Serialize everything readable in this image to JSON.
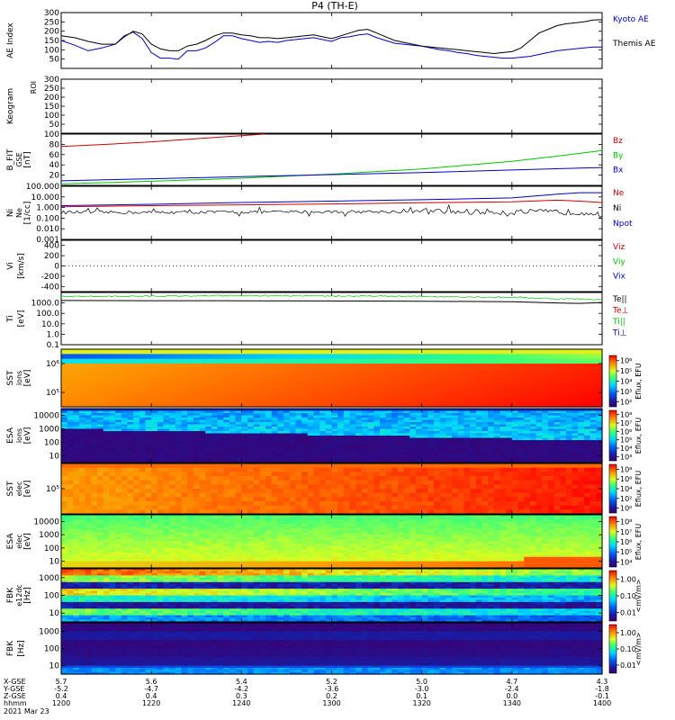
{
  "chart_data": {
    "title": "P4 (TH-E)",
    "date": "2021 Mar 23",
    "x_axis": {
      "row_labels": [
        "X-GSE",
        "Y-GSE",
        "Z-GSE",
        "hhmm"
      ],
      "ticks": [
        {
          "x": "5.7",
          "y": "-5.2",
          "z": "0.4",
          "hhmm": "1200"
        },
        {
          "x": "5.6",
          "y": "-4.7",
          "z": "0.4",
          "hhmm": "1220"
        },
        {
          "x": "5.4",
          "y": "-4.2",
          "z": "0.3",
          "hhmm": "1240"
        },
        {
          "x": "5.2",
          "y": "-3.6",
          "z": "0.2",
          "hhmm": "1300"
        },
        {
          "x": "5.0",
          "y": "-3.0",
          "z": "0.1",
          "hhmm": "1320"
        },
        {
          "x": "4.7",
          "y": "-2.4",
          "z": "0.0",
          "hhmm": "1340"
        },
        {
          "x": "4.3",
          "y": "-1.8",
          "z": "-0.1",
          "hhmm": "1400"
        }
      ]
    },
    "panels": [
      {
        "id": "ae",
        "type": "line",
        "ylabel": "AE Index",
        "ylim": [
          0,
          300
        ],
        "yticks": [
          "50",
          "100",
          "150",
          "200",
          "250",
          "300"
        ],
        "legend": [
          {
            "text": "Kyoto AE",
            "color": "#0000c8"
          },
          {
            "text": "Themis AE",
            "color": "#000000"
          }
        ],
        "series": [
          {
            "name": "Kyoto AE",
            "color": "#0000c8",
            "t": [
              0,
              3,
              6,
              9,
              12,
              14,
              16,
              18,
              20,
              22,
              24,
              26,
              28,
              30,
              32,
              34,
              36,
              38,
              40,
              42,
              44,
              46,
              48,
              50,
              52,
              54,
              56,
              58,
              60,
              62,
              64,
              66,
              68,
              70,
              72,
              74,
              76,
              78,
              80,
              82,
              84,
              86,
              88,
              90,
              92,
              94,
              96,
              98,
              100,
              102,
              104,
              106,
              108,
              110,
              112,
              114,
              116,
              118,
              120
            ],
            "v": [
              150,
              125,
              95,
              110,
              130,
              175,
              195,
              160,
              85,
              55,
              55,
              50,
              95,
              95,
              110,
              140,
              175,
              175,
              160,
              150,
              140,
              145,
              140,
              150,
              155,
              160,
              165,
              155,
              145,
              165,
              170,
              180,
              185,
              165,
              150,
              135,
              130,
              125,
              120,
              110,
              100,
              95,
              85,
              80,
              70,
              65,
              60,
              55,
              55,
              60,
              65,
              75,
              85,
              95,
              100,
              105,
              110,
              115,
              115
            ]
          },
          {
            "name": "Themis AE",
            "color": "#000000",
            "t": [
              0,
              3,
              6,
              9,
              12,
              14,
              16,
              18,
              20,
              22,
              24,
              26,
              28,
              30,
              32,
              34,
              36,
              38,
              40,
              42,
              44,
              46,
              48,
              50,
              52,
              54,
              56,
              58,
              60,
              62,
              64,
              66,
              68,
              70,
              72,
              74,
              76,
              78,
              80,
              82,
              84,
              86,
              88,
              90,
              92,
              94,
              96,
              98,
              100,
              102,
              104,
              106,
              108,
              110,
              112,
              114,
              116,
              118,
              120
            ],
            "v": [
              175,
              165,
              145,
              130,
              130,
              170,
              200,
              185,
              130,
              105,
              95,
              95,
              120,
              130,
              150,
              175,
              190,
              190,
              180,
              175,
              165,
              165,
              160,
              165,
              170,
              175,
              180,
              170,
              160,
              175,
              190,
              205,
              210,
              190,
              170,
              150,
              140,
              130,
              120,
              115,
              110,
              105,
              100,
              95,
              90,
              85,
              80,
              85,
              90,
              110,
              150,
              190,
              210,
              230,
              240,
              245,
              250,
              260,
              262
            ]
          }
        ]
      },
      {
        "id": "kp",
        "type": "empty",
        "ylabel": "Keogram",
        "ylim": [
          0,
          300
        ],
        "yticks": [
          "50",
          "100",
          "150",
          "200",
          "250",
          "300"
        ],
        "top_label": "ROI"
      },
      {
        "id": "bfit",
        "type": "line",
        "ylabel": "B_FIT",
        "units": "[nT]",
        "sub": "GSE",
        "ylim": [
          0,
          100
        ],
        "yticks": [
          "20",
          "40",
          "60",
          "80",
          "100"
        ],
        "legend": [
          {
            "text": "Bz",
            "color": "#d00000"
          },
          {
            "text": "By",
            "color": "#00c800"
          },
          {
            "text": "Bx",
            "color": "#0000c8"
          }
        ],
        "series": [
          {
            "name": "Bz",
            "color": "#d00000",
            "t": [
              0,
              10,
              20,
              30,
              40,
              45
            ],
            "v": [
              76,
              80,
              85,
              91,
              97,
              100
            ]
          },
          {
            "name": "By",
            "color": "#00c800",
            "t": [
              0,
              20,
              40,
              60,
              80,
              100,
              110,
              120
            ],
            "v": [
              3,
              8,
              14,
              22,
              32,
              47,
              57,
              68
            ]
          },
          {
            "name": "Bx",
            "color": "#0000c8",
            "t": [
              0,
              20,
              40,
              60,
              80,
              100,
              120
            ],
            "v": [
              9,
              13,
              17,
              21,
              25,
              30,
              35
            ]
          }
        ]
      },
      {
        "id": "ni",
        "type": "line",
        "ylabel": "Ni",
        "units": "[1/cc]",
        "sub": "Ne",
        "scale": "log",
        "ylim": [
          0.001,
          100
        ],
        "yticks": [
          "0.001",
          "0.010",
          "0.100",
          "1.000",
          "10.000",
          "100.000"
        ],
        "legend": [
          {
            "text": "Ne",
            "color": "#d00000"
          },
          {
            "text": "Ni",
            "color": "#000000"
          },
          {
            "text": "Npot",
            "color": "#0000c8"
          }
        ],
        "series": [
          {
            "name": "Ne",
            "color": "#d00000",
            "t": [
              0,
              20,
              40,
              60,
              80,
              100,
              110,
              115,
              120
            ],
            "v": [
              1.2,
              1.5,
              1.8,
              2.2,
              2.8,
              3.4,
              5,
              4,
              3
            ]
          },
          {
            "name": "Npot",
            "color": "#0000c8",
            "t": [
              0,
              20,
              40,
              60,
              80,
              100,
              110,
              115,
              120
            ],
            "v": [
              1.5,
              2,
              3,
              4,
              5.5,
              8,
              18,
              25,
              25
            ]
          },
          {
            "name": "Ni",
            "color": "#000000",
            "t": [
              0,
              20,
              40,
              60,
              80,
              100,
              120
            ],
            "v": [
              0.35,
              0.35,
              0.38,
              0.4,
              0.42,
              0.38,
              0.35
            ]
          }
        ]
      },
      {
        "id": "vi",
        "type": "line",
        "ylabel": "Vi",
        "units": "[km/s]",
        "ylim": [
          -500,
          500
        ],
        "yticks": [
          "-400",
          "-200",
          "0",
          "200",
          "400"
        ],
        "legend": [
          {
            "text": "Viz",
            "color": "#d00000"
          },
          {
            "text": "Viy",
            "color": "#00c800"
          },
          {
            "text": "Vix",
            "color": "#0000c8"
          }
        ],
        "zero_line": true
      },
      {
        "id": "ti",
        "type": "line",
        "ylabel": "Ti",
        "units": "[eV]",
        "scale": "log",
        "ylim": [
          0.1,
          10000
        ],
        "yticks": [
          "0.1",
          "1.0",
          "10.0",
          "100.0",
          "1000.0"
        ],
        "legend": [
          {
            "text": "Te||",
            "color": "#000000"
          },
          {
            "text": "Te⊥",
            "color": "#d00000"
          },
          {
            "text": "Ti||",
            "color": "#00c800"
          },
          {
            "text": "Ti⊥",
            "color": "#0000c8"
          }
        ],
        "series": [
          {
            "name": "Ti||",
            "color": "#00c800",
            "t": [
              0,
              20,
              40,
              60,
              80,
              100,
              110,
              120
            ],
            "v": [
              4000,
              4500,
              5000,
              4600,
              4200,
              3500,
              2500,
              2200
            ]
          },
          {
            "name": "Te||",
            "color": "#000000",
            "t": [
              0,
              20,
              40,
              60,
              80,
              100,
              110,
              115,
              120
            ],
            "v": [
              1700,
              1650,
              1600,
              1550,
              1450,
              1300,
              1000,
              900,
              1100
            ]
          }
        ]
      },
      {
        "id": "sst_i",
        "type": "heatmap",
        "ylabel": "SST",
        "units": "[eV]",
        "sub": "ions",
        "yticks": [
          "10⁵",
          "10⁶"
        ],
        "cbar": {
          "label": "Eflux, EFU",
          "ticks": [
            "10²",
            "10³",
            "10⁴",
            "10⁵",
            "10⁶"
          ]
        }
      },
      {
        "id": "esa_i",
        "type": "heatmap",
        "ylabel": "ESA",
        "units": "[eV]",
        "sub": "ions",
        "yticks": [
          "10",
          "100",
          "1000",
          "10000"
        ],
        "cbar": {
          "label": "Eflux, EFU",
          "ticks": [
            "10³",
            "10⁴",
            "10⁵",
            "10⁶",
            "10⁷",
            "10⁸"
          ]
        }
      },
      {
        "id": "sst_e",
        "type": "heatmap",
        "ylabel": "SST",
        "units": "[eV]",
        "sub": "elec",
        "yticks": [
          "10⁵"
        ],
        "cbar": {
          "label": "Eflux, EFU",
          "ticks": [
            "10⁰",
            "10²",
            "10⁴",
            "10⁶",
            "10⁸"
          ]
        }
      },
      {
        "id": "esa_e",
        "type": "heatmap",
        "ylabel": "ESA",
        "units": "[eV]",
        "sub": "elec",
        "yticks": [
          "10",
          "100",
          "1000",
          "10000"
        ],
        "cbar": {
          "label": "Eflux, EFU",
          "ticks": [
            "10⁴",
            "10⁵",
            "10⁶",
            "10⁷",
            "10⁸"
          ]
        }
      },
      {
        "id": "fbk_e",
        "type": "heatmap",
        "ylabel": "FBK",
        "units": "[Hz]",
        "sub": "e12dc",
        "yticks": [
          "10",
          "100",
          "1000"
        ],
        "cbar": {
          "label": "<mV/m>",
          "ticks": [
            "0.01",
            "0.10",
            "1.00"
          ]
        }
      },
      {
        "id": "fbk_b",
        "type": "heatmap",
        "ylabel": "FBK",
        "units": "[Hz]",
        "yticks": [
          "10",
          "100",
          "1000"
        ],
        "cbar": {
          "label": "<mV/m>",
          "ticks": [
            "0.01",
            "0.10",
            "1.00"
          ]
        }
      }
    ]
  }
}
